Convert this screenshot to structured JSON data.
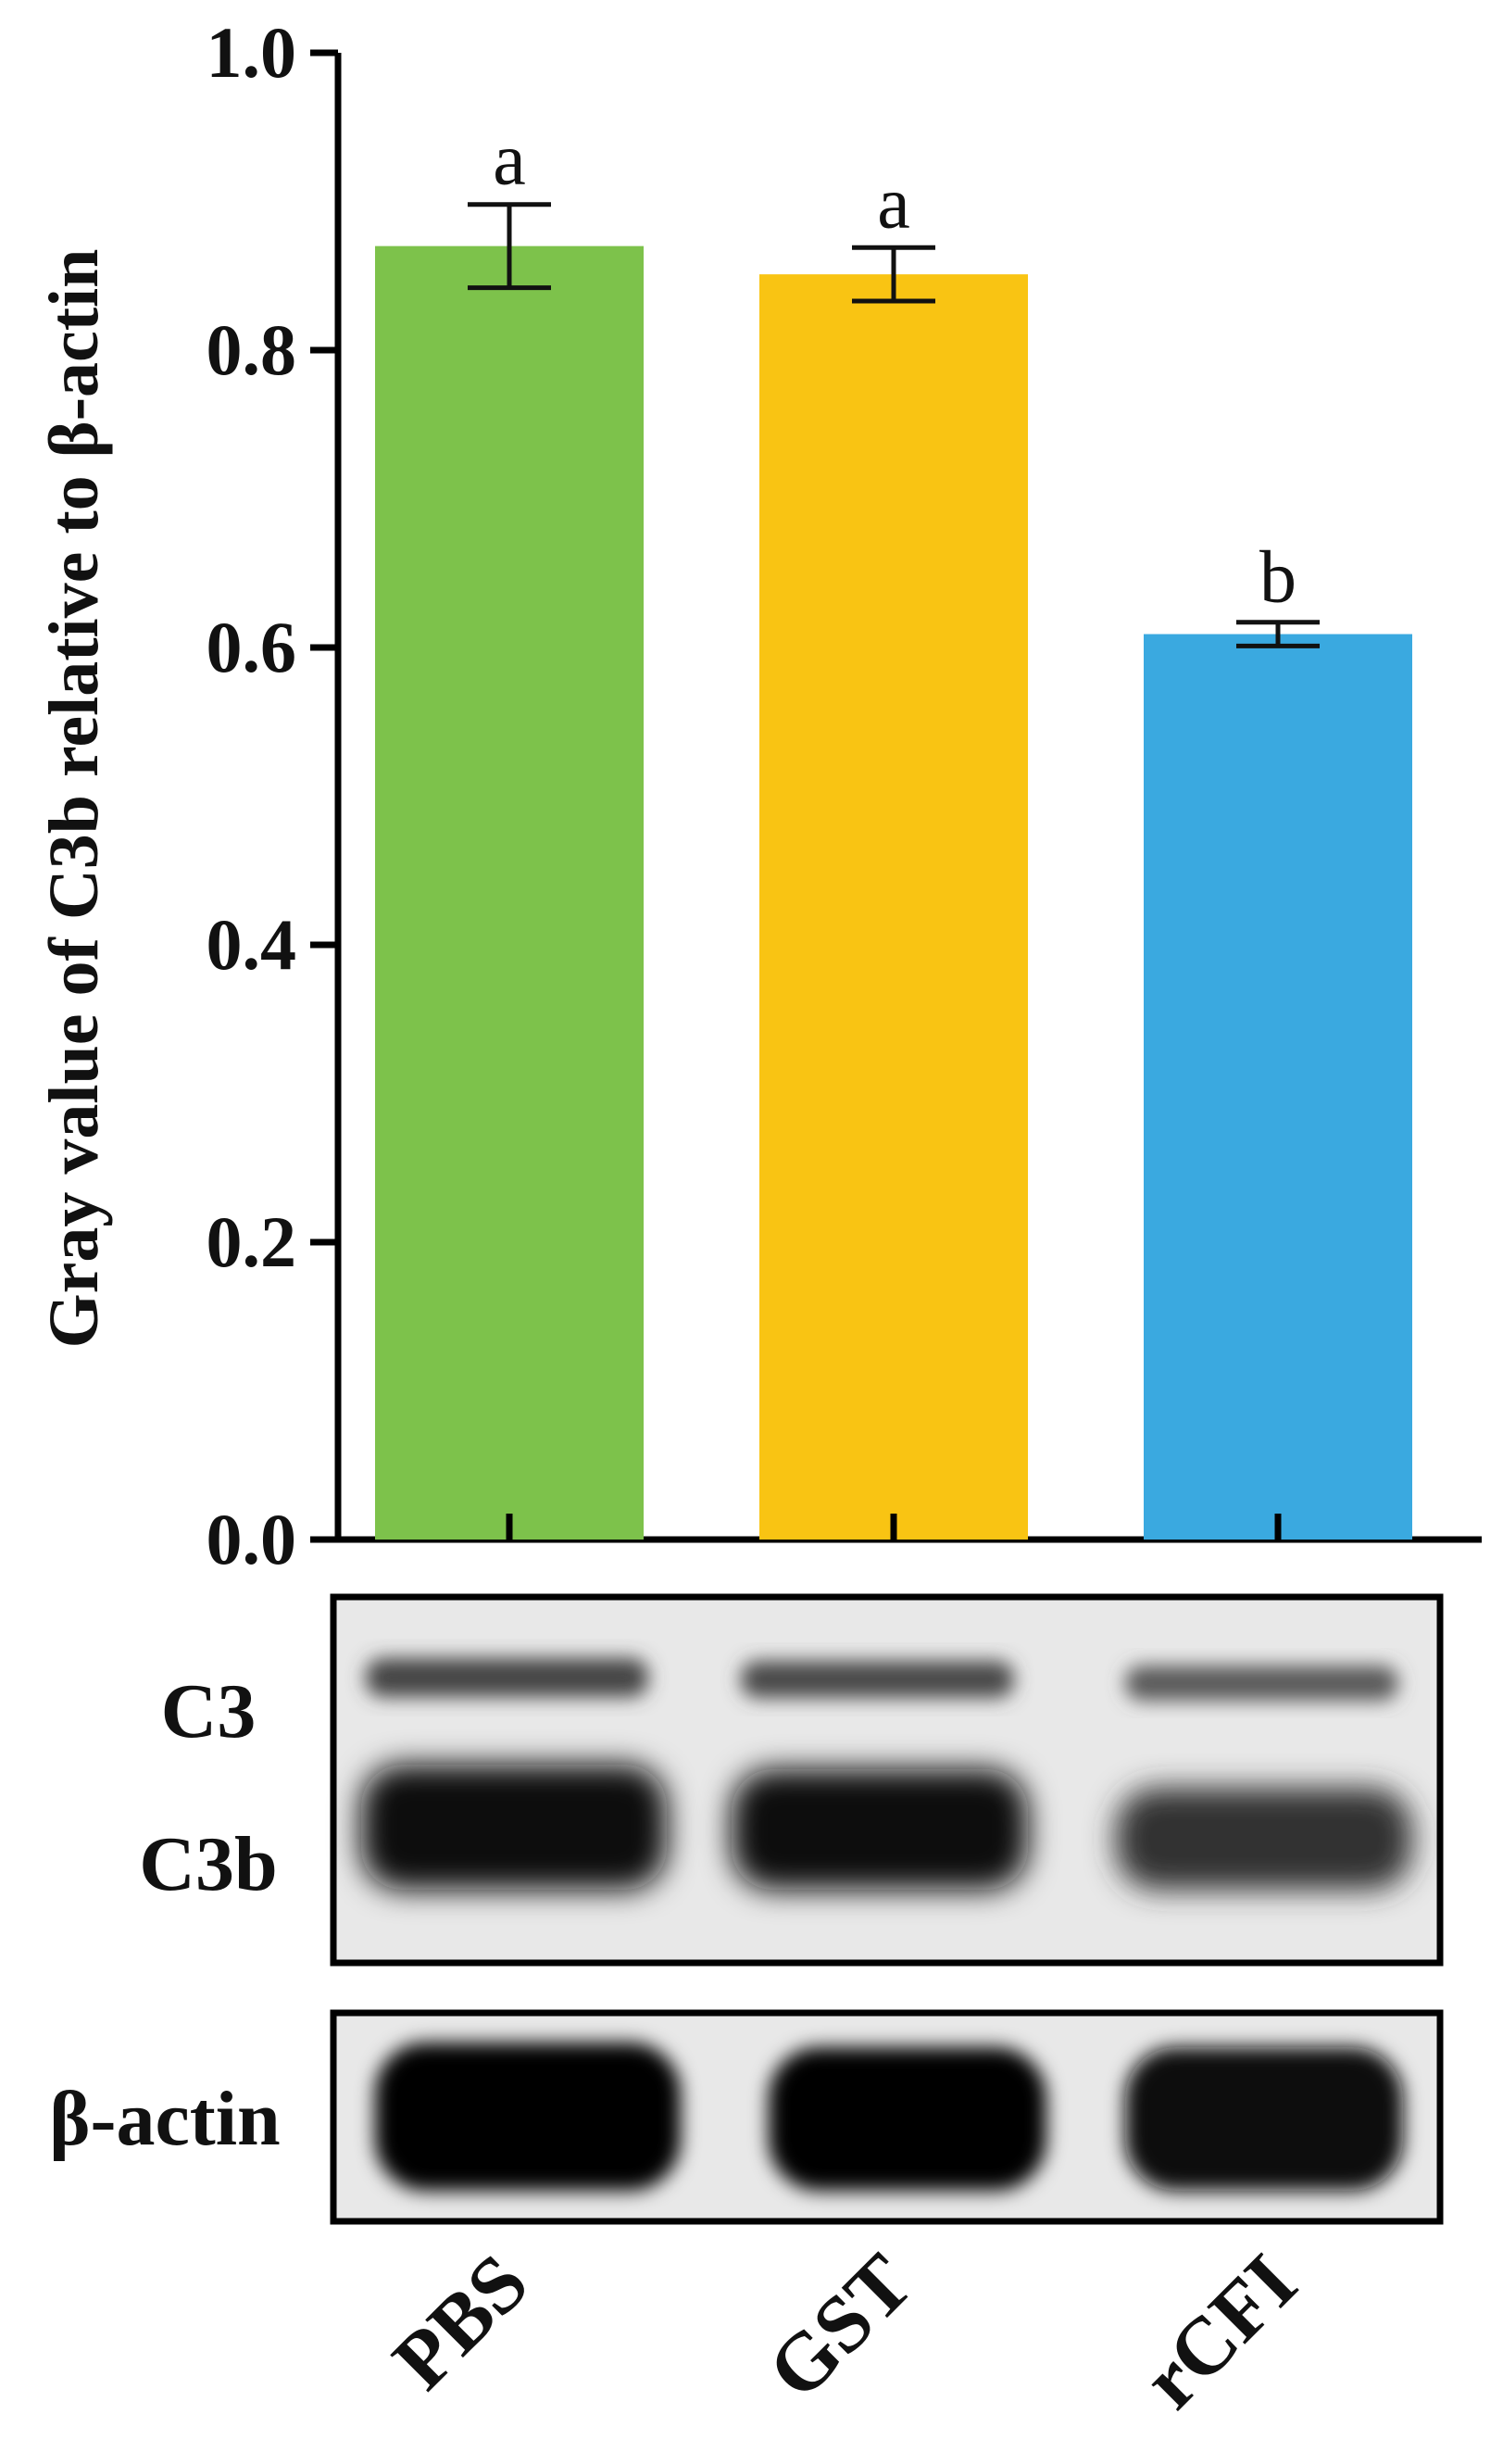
{
  "chart_data": {
    "type": "bar",
    "title": "",
    "xlabel": "",
    "ylabel": "Gray value of C3b relative to β-actin",
    "ylim": [
      0,
      1.0
    ],
    "yticks": [
      "0.0",
      "0.2",
      "0.4",
      "0.6",
      "0.8",
      "1.0"
    ],
    "grid": false,
    "categories": [
      "PBS",
      "GST",
      "rCFI"
    ],
    "values": [
      0.87,
      0.851,
      0.609
    ],
    "errors": [
      0.028,
      0.018,
      0.008
    ],
    "annotations": [
      "a",
      "a",
      "b"
    ],
    "colors": [
      "#7dc24b",
      "#f9c413",
      "#3aa9e0"
    ]
  },
  "blot": {
    "upper_labels": [
      "C3",
      "C3b"
    ],
    "lower_label": "β-actin"
  }
}
